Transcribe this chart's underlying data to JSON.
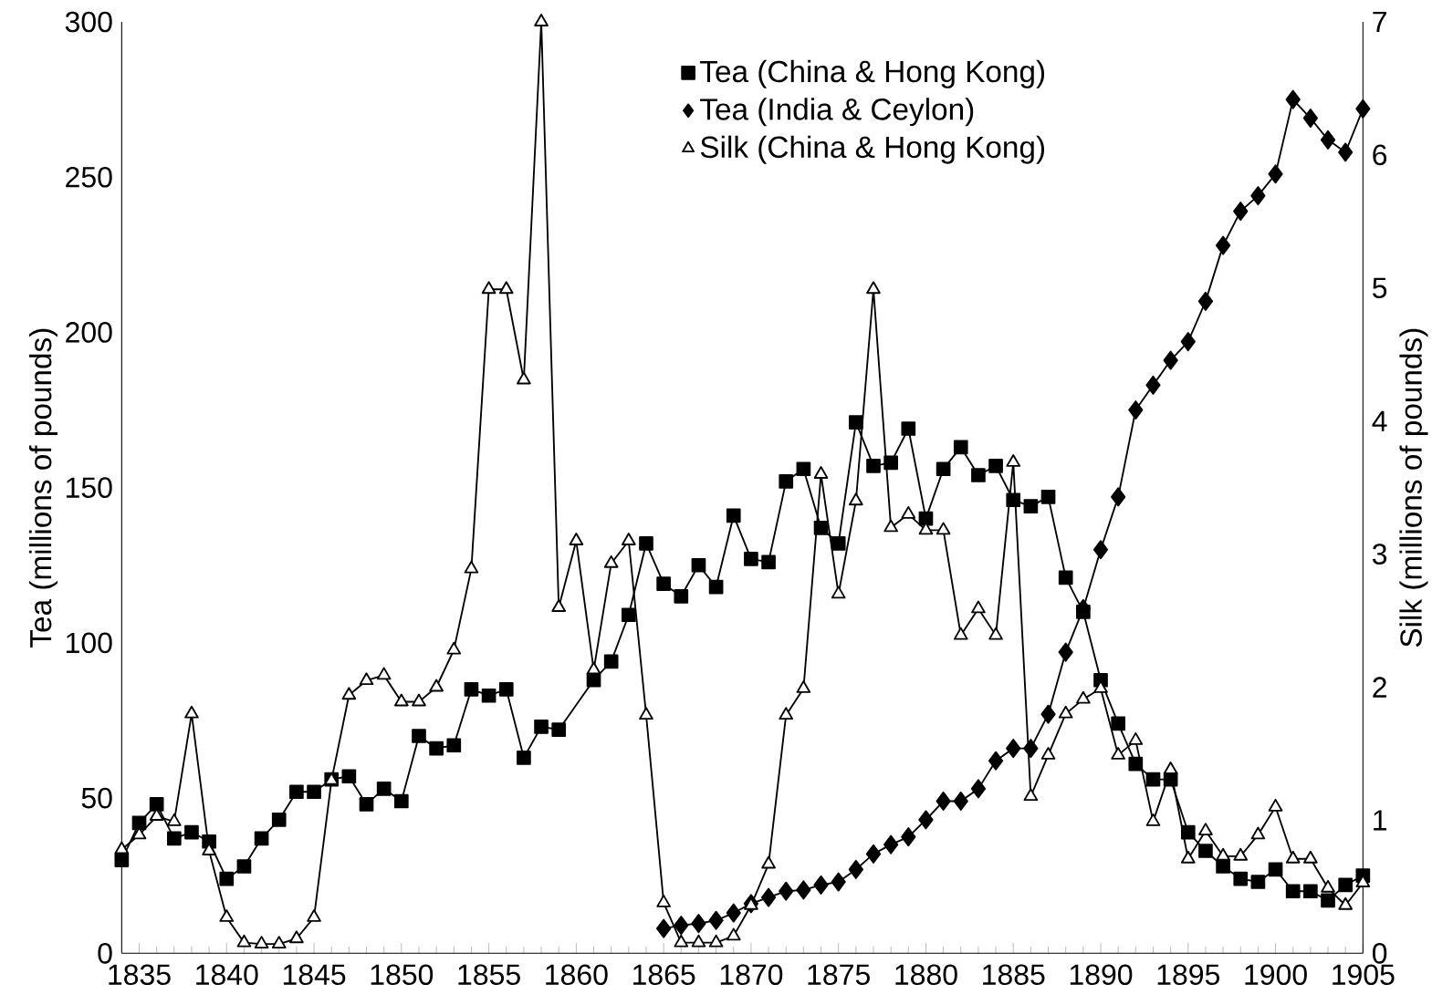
{
  "chart_data": {
    "type": "line",
    "xlabel": null,
    "ylabel": "Tea (millions of pounds)",
    "y2label": "Silk (millions of pounds)",
    "xlim": [
      1834,
      1905
    ],
    "xticks": [
      1835,
      1840,
      1845,
      1850,
      1855,
      1860,
      1865,
      1870,
      1875,
      1880,
      1885,
      1890,
      1895,
      1900,
      1905
    ],
    "ylim": [
      0,
      300
    ],
    "yticks": [
      0,
      50,
      100,
      150,
      200,
      250,
      300
    ],
    "y2lim": [
      0,
      7
    ],
    "y2ticks": [
      0,
      1,
      2,
      3,
      4,
      5,
      6,
      7
    ],
    "legend": "top",
    "grid": false,
    "series": [
      {
        "name": "Tea (China & Hong Kong)",
        "color": "#000000",
        "marker": "square",
        "x": [
          1834,
          1835,
          1836,
          1837,
          1838,
          1839,
          1840,
          1841,
          1842,
          1843,
          1844,
          1845,
          1846,
          1847,
          1848,
          1849,
          1850,
          1851,
          1852,
          1853,
          1854,
          1855,
          1856,
          1857,
          1858,
          1859,
          1861,
          1862,
          1863,
          1864,
          1865,
          1866,
          1867,
          1868,
          1869,
          1870,
          1871,
          1872,
          1873,
          1874,
          1875,
          1876,
          1877,
          1878,
          1879,
          1880,
          1881,
          1882,
          1883,
          1884,
          1885,
          1886,
          1887,
          1888,
          1889,
          1890,
          1891,
          1892,
          1893,
          1894,
          1895,
          1896,
          1897,
          1898,
          1899,
          1900,
          1901,
          1902,
          1903,
          1904,
          1905
        ],
        "values": [
          30,
          42,
          48,
          37,
          39,
          36,
          24,
          28,
          37,
          43,
          52,
          52,
          56,
          57,
          48,
          53,
          49,
          70,
          66,
          67,
          85,
          83,
          85,
          63,
          73,
          72,
          88,
          94,
          109,
          132,
          119,
          115,
          125,
          118,
          141,
          127,
          126,
          152,
          156,
          137,
          132,
          171,
          157,
          158,
          169,
          140,
          156,
          163,
          154,
          157,
          146,
          144,
          147,
          121,
          110,
          88,
          74,
          61,
          56,
          56,
          39,
          33,
          28,
          24,
          23,
          27,
          20,
          20,
          17,
          22,
          25
        ]
      },
      {
        "name": "Tea (India & Ceylon)",
        "color": "#000000",
        "marker": "diamond",
        "x": [
          1865,
          1866,
          1867,
          1868,
          1869,
          1870,
          1871,
          1872,
          1873,
          1874,
          1875,
          1876,
          1877,
          1878,
          1879,
          1880,
          1881,
          1882,
          1883,
          1884,
          1885,
          1886,
          1887,
          1888,
          1889,
          1890,
          1891,
          1892,
          1893,
          1894,
          1895,
          1896,
          1897,
          1898,
          1899,
          1900,
          1901,
          1902,
          1903,
          1904,
          1905
        ],
        "values": [
          8,
          9,
          9.6,
          10.6,
          13,
          16,
          18,
          20,
          20.4,
          22,
          23,
          27,
          32,
          35,
          37.5,
          43,
          49,
          49,
          53,
          62,
          66,
          66,
          77,
          97,
          111,
          130,
          147,
          175,
          183,
          191,
          197,
          210,
          228,
          239,
          244,
          251,
          275,
          269,
          262,
          258,
          272
        ]
      },
      {
        "name": "Silk (China & Hong Kong)",
        "color": "#000000",
        "marker": "triangle",
        "axis": "y2",
        "x": [
          1834,
          1835,
          1836,
          1837,
          1838,
          1839,
          1840,
          1841,
          1842,
          1843,
          1844,
          1845,
          1846,
          1847,
          1848,
          1849,
          1850,
          1851,
          1852,
          1853,
          1854,
          1855,
          1856,
          1857,
          1858,
          1859,
          1860,
          1861,
          1862,
          1863,
          1864,
          1865,
          1866,
          1867,
          1868,
          1869,
          1870,
          1871,
          1872,
          1873,
          1874,
          1875,
          1876,
          1877,
          1878,
          1879,
          1880,
          1881,
          1882,
          1883,
          1884,
          1885,
          1886,
          1887,
          1888,
          1889,
          1890,
          1891,
          1892,
          1893,
          1894,
          1895,
          1896,
          1897,
          1898,
          1899,
          1900,
          1901,
          1902,
          1903,
          1904,
          1905
        ],
        "values": [
          0.78,
          0.89,
          1.03,
          0.99,
          1.8,
          0.77,
          0.27,
          0.08,
          0.07,
          0.07,
          0.11,
          0.27,
          1.3,
          1.94,
          2.05,
          2.09,
          1.89,
          1.89,
          2.0,
          2.28,
          2.89,
          4.99,
          4.99,
          4.31,
          7.0,
          2.6,
          3.1,
          2.13,
          2.93,
          3.1,
          1.79,
          0.38,
          0.08,
          0.08,
          0.08,
          0.13,
          0.36,
          0.67,
          1.79,
          1.99,
          3.6,
          2.7,
          3.4,
          4.99,
          3.2,
          3.3,
          3.18,
          3.18,
          2.39,
          2.59,
          2.39,
          3.69,
          1.18,
          1.49,
          1.8,
          1.91,
          1.99,
          1.49,
          1.6,
          0.99,
          1.38,
          0.71,
          0.92,
          0.73,
          0.73,
          0.89,
          1.1,
          0.71,
          0.71,
          0.49,
          0.36,
          0.53
        ]
      }
    ]
  }
}
